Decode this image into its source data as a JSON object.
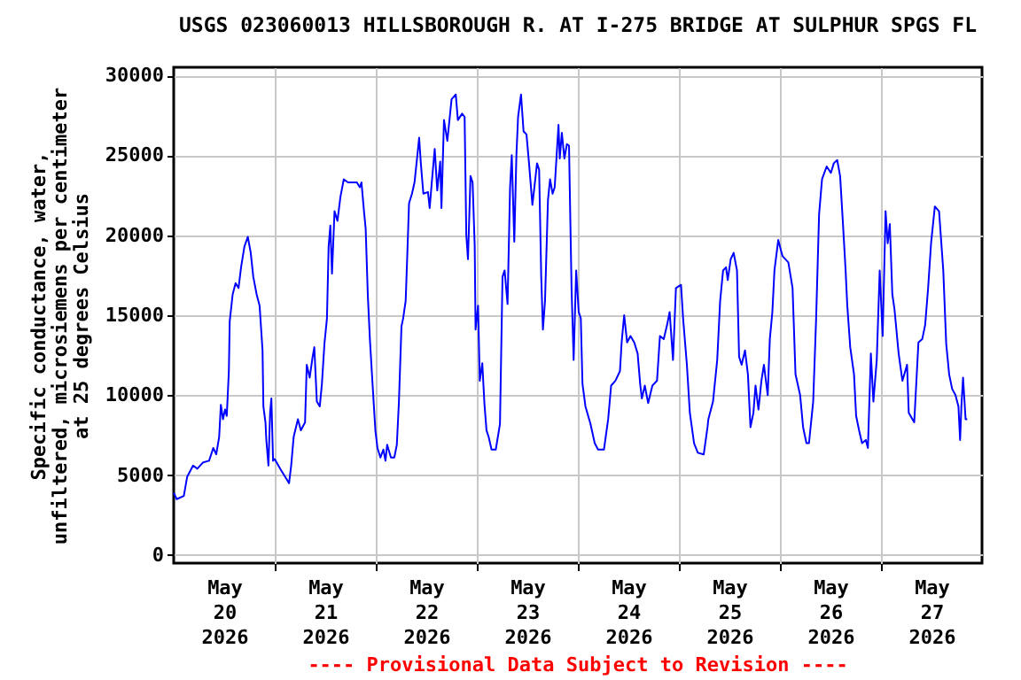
{
  "chart_data": {
    "type": "line",
    "title": "USGS 023060013 HILLSBOROUGH R. AT I-275 BRIDGE AT SULPHUR SPGS FL",
    "ylabel": "Specific conductance, water,\nunfiltered, microsiemens per centimeter\nat 25 degrees Celsius",
    "annotations": [
      "---- Provisional Data Subject to Revision ----"
    ],
    "xlim": [
      "2026-05-20T00:00",
      "2026-05-28T00:00"
    ],
    "xticks": [
      {
        "value": "2026-05-20T12:00",
        "label": "May\n20\n2026"
      },
      {
        "value": "2026-05-21T00:00",
        "label": null
      },
      {
        "value": "2026-05-21T12:00",
        "label": "May\n21\n2026"
      },
      {
        "value": "2026-05-22T00:00",
        "label": null
      },
      {
        "value": "2026-05-22T12:00",
        "label": "May\n22\n2026"
      },
      {
        "value": "2026-05-23T00:00",
        "label": null
      },
      {
        "value": "2026-05-23T12:00",
        "label": "May\n23\n2026"
      },
      {
        "value": "2026-05-24T00:00",
        "label": null
      },
      {
        "value": "2026-05-24T12:00",
        "label": "May\n24\n2026"
      },
      {
        "value": "2026-05-25T00:00",
        "label": null
      },
      {
        "value": "2026-05-25T12:00",
        "label": "May\n25\n2026"
      },
      {
        "value": "2026-05-26T00:00",
        "label": null
      },
      {
        "value": "2026-05-26T12:00",
        "label": "May\n26\n2026"
      },
      {
        "value": "2026-05-27T00:00",
        "label": null
      },
      {
        "value": "2026-05-27T12:00",
        "label": "May\n27\n2026"
      }
    ],
    "ylim": [
      -500,
      30500
    ],
    "yticks": [
      0,
      5000,
      10000,
      15000,
      20000,
      25000,
      30000
    ],
    "grid": true,
    "x": [
      "2026-05-20T00:00",
      "2026-05-20T00:42",
      "2026-05-20T02:24",
      "2026-05-20T03:12",
      "2026-05-20T04:36",
      "2026-05-20T05:36",
      "2026-05-20T07:00",
      "2026-05-20T08:24",
      "2026-05-20T09:24",
      "2026-05-20T10:06",
      "2026-05-20T10:48",
      "2026-05-20T11:12",
      "2026-05-20T11:42",
      "2026-05-20T12:12",
      "2026-05-20T12:36",
      "2026-05-20T13:06",
      "2026-05-20T13:18",
      "2026-05-20T14:00",
      "2026-05-20T14:42",
      "2026-05-20T15:24",
      "2026-05-20T16:00",
      "2026-05-20T16:48",
      "2026-05-20T17:36",
      "2026-05-20T18:18",
      "2026-05-20T18:54",
      "2026-05-20T19:42",
      "2026-05-20T20:24",
      "2026-05-20T21:06",
      "2026-05-20T21:18",
      "2026-05-20T21:48",
      "2026-05-20T22:00",
      "2026-05-20T22:30",
      "2026-05-20T22:54",
      "2026-05-20T23:12",
      "2026-05-20T23:36",
      "2026-05-21T00:00",
      "2026-05-21T01:18",
      "2026-05-21T02:42",
      "2026-05-21T03:24",
      "2026-05-21T03:54",
      "2026-05-21T04:30",
      "2026-05-21T05:30",
      "2026-05-21T06:12",
      "2026-05-21T07:12",
      "2026-05-21T07:36",
      "2026-05-21T08:18",
      "2026-05-21T09:00",
      "2026-05-21T09:24",
      "2026-05-21T10:00",
      "2026-05-21T10:42",
      "2026-05-21T11:12",
      "2026-05-21T11:48",
      "2026-05-21T12:24",
      "2026-05-21T12:48",
      "2026-05-21T13:12",
      "2026-05-21T13:36",
      "2026-05-21T14:12",
      "2026-05-21T14:54",
      "2026-05-21T15:36",
      "2026-05-21T16:24",
      "2026-05-21T17:24",
      "2026-05-21T19:30",
      "2026-05-21T20:12",
      "2026-05-21T20:36",
      "2026-05-21T21:12",
      "2026-05-21T21:36",
      "2026-05-21T22:06",
      "2026-05-21T22:36",
      "2026-05-21T23:18",
      "2026-05-21T23:54",
      "2026-05-22T00:24",
      "2026-05-22T01:06",
      "2026-05-22T01:48",
      "2026-05-22T02:18",
      "2026-05-22T02:42",
      "2026-05-22T03:36",
      "2026-05-22T04:24",
      "2026-05-22T05:00",
      "2026-05-22T05:30",
      "2026-05-22T06:06",
      "2026-05-22T06:30",
      "2026-05-22T07:06",
      "2026-05-22T07:30",
      "2026-05-22T07:54",
      "2026-05-22T08:36",
      "2026-05-22T09:12",
      "2026-05-22T09:48",
      "2026-05-22T10:18",
      "2026-05-22T10:42",
      "2026-05-22T11:18",
      "2026-05-22T12:24",
      "2026-05-22T12:48",
      "2026-05-22T13:18",
      "2026-05-22T14:00",
      "2026-05-22T14:36",
      "2026-05-22T15:18",
      "2026-05-22T15:36",
      "2026-05-22T16:12",
      "2026-05-22T17:00",
      "2026-05-22T18:00",
      "2026-05-22T19:00",
      "2026-05-22T19:30",
      "2026-05-22T20:30",
      "2026-05-22T21:06",
      "2026-05-22T21:30",
      "2026-05-22T21:54",
      "2026-05-22T22:30",
      "2026-05-22T23:00",
      "2026-05-22T23:30",
      "2026-05-22T23:42",
      "2026-05-23T00:18",
      "2026-05-23T00:42",
      "2026-05-23T01:18",
      "2026-05-23T01:48",
      "2026-05-23T02:18",
      "2026-05-23T02:48",
      "2026-05-23T03:30",
      "2026-05-23T04:30",
      "2026-05-23T05:30",
      "2026-05-23T06:06",
      "2026-05-23T06:36",
      "2026-05-23T07:18",
      "2026-05-23T07:54",
      "2026-05-23T08:18",
      "2026-05-23T08:54",
      "2026-05-23T09:24",
      "2026-05-23T09:48",
      "2026-05-23T10:30",
      "2026-05-23T11:06",
      "2026-05-23T11:48",
      "2026-05-23T12:24",
      "2026-05-23T13:12",
      "2026-05-23T13:48",
      "2026-05-23T14:18",
      "2026-05-23T14:48",
      "2026-05-23T15:18",
      "2026-05-23T15:42",
      "2026-05-23T16:12",
      "2026-05-23T16:54",
      "2026-05-23T17:24",
      "2026-05-23T18:00",
      "2026-05-23T18:30",
      "2026-05-23T19:24",
      "2026-05-23T19:42",
      "2026-05-23T20:12",
      "2026-05-23T20:48",
      "2026-05-23T21:24",
      "2026-05-23T21:54",
      "2026-05-23T22:30",
      "2026-05-23T23:00",
      "2026-05-23T23:36",
      "2026-05-24T00:12",
      "2026-05-24T00:42",
      "2026-05-24T01:06",
      "2026-05-24T01:48",
      "2026-05-24T03:00",
      "2026-05-24T04:00",
      "2026-05-24T04:48",
      "2026-05-24T06:12",
      "2026-05-24T07:12",
      "2026-05-24T07:54",
      "2026-05-24T08:54",
      "2026-05-24T10:00",
      "2026-05-24T10:24",
      "2026-05-24T11:00",
      "2026-05-24T11:42",
      "2026-05-24T12:30",
      "2026-05-24T13:24",
      "2026-05-24T14:12",
      "2026-05-24T14:48",
      "2026-05-24T15:12",
      "2026-05-24T15:54",
      "2026-05-24T16:42",
      "2026-05-24T17:42",
      "2026-05-24T18:48",
      "2026-05-24T19:30",
      "2026-05-24T20:24",
      "2026-05-24T21:12",
      "2026-05-24T21:48",
      "2026-05-24T22:36",
      "2026-05-24T23:18",
      "2026-05-25T00:30",
      "2026-05-25T01:00",
      "2026-05-25T01:54",
      "2026-05-25T02:36",
      "2026-05-25T03:36",
      "2026-05-25T04:30",
      "2026-05-25T05:54",
      "2026-05-25T06:48",
      "2026-05-25T07:00",
      "2026-05-25T08:06",
      "2026-05-25T09:06",
      "2026-05-25T09:48",
      "2026-05-25T10:30",
      "2026-05-25T11:12",
      "2026-05-25T11:36",
      "2026-05-25T12:18",
      "2026-05-25T13:00",
      "2026-05-25T13:48",
      "2026-05-25T14:18",
      "2026-05-25T14:54",
      "2026-05-25T15:42",
      "2026-05-25T16:24",
      "2026-05-25T17:00",
      "2026-05-25T17:42",
      "2026-05-25T18:12",
      "2026-05-25T18:54",
      "2026-05-25T19:36",
      "2026-05-25T20:12",
      "2026-05-25T21:06",
      "2026-05-25T21:36",
      "2026-05-25T22:12",
      "2026-05-25T22:42",
      "2026-05-25T23:36",
      "2026-05-26T00:36",
      "2026-05-26T02:00",
      "2026-05-26T03:00",
      "2026-05-26T03:42",
      "2026-05-26T04:48",
      "2026-05-26T05:30",
      "2026-05-26T06:18",
      "2026-05-26T06:54",
      "2026-05-26T07:54",
      "2026-05-26T08:36",
      "2026-05-26T09:18",
      "2026-05-26T10:00",
      "2026-05-26T11:06",
      "2026-05-26T12:06",
      "2026-05-26T12:48",
      "2026-05-26T13:36",
      "2026-05-26T14:18",
      "2026-05-26T15:00",
      "2026-05-26T15:36",
      "2026-05-26T16:00",
      "2026-05-26T16:42",
      "2026-05-26T17:36",
      "2026-05-26T18:06",
      "2026-05-26T18:48",
      "2026-05-26T19:30",
      "2026-05-26T20:24",
      "2026-05-26T20:54",
      "2026-05-26T21:36",
      "2026-05-26T22:12",
      "2026-05-26T23:00",
      "2026-05-26T23:42",
      "2026-05-27T00:24",
      "2026-05-27T01:06",
      "2026-05-27T01:36",
      "2026-05-27T02:06",
      "2026-05-27T02:42",
      "2026-05-27T03:12",
      "2026-05-27T04:12",
      "2026-05-27T05:06",
      "2026-05-27T06:12",
      "2026-05-27T06:36",
      "2026-05-27T07:54",
      "2026-05-27T08:54",
      "2026-05-27T09:48",
      "2026-05-27T10:30",
      "2026-05-27T11:12",
      "2026-05-27T11:54",
      "2026-05-27T12:48",
      "2026-05-27T13:48",
      "2026-05-27T14:48",
      "2026-05-27T15:30",
      "2026-05-27T16:12",
      "2026-05-27T16:54",
      "2026-05-27T17:42",
      "2026-05-27T18:24",
      "2026-05-27T18:48",
      "2026-05-27T19:06",
      "2026-05-27T19:30",
      "2026-05-27T20:06",
      "2026-05-27T20:30"
    ],
    "series": [
      {
        "color": "#0000ff",
        "values": [
          3900,
          3500,
          3700,
          4900,
          5600,
          5400,
          5800,
          5900,
          6700,
          6300,
          7400,
          9400,
          8500,
          9100,
          8700,
          11500,
          14600,
          16300,
          17000,
          16700,
          18000,
          19300,
          19900,
          18900,
          17400,
          16300,
          15600,
          12800,
          9300,
          8300,
          7200,
          5600,
          8900,
          9800,
          5900,
          6000,
          5400,
          4800,
          4500,
          5600,
          7400,
          8500,
          7800,
          8300,
          11900,
          11100,
          12400,
          13000,
          9600,
          9300,
          10700,
          13200,
          14800,
          19300,
          20600,
          17600,
          21500,
          20900,
          22400,
          23500,
          23300,
          23300,
          23000,
          23300,
          21500,
          20400,
          16300,
          13500,
          10400,
          7800,
          6700,
          6100,
          6600,
          5900,
          6900,
          6100,
          6100,
          6900,
          9600,
          14300,
          14800,
          15900,
          18900,
          22000,
          22600,
          23300,
          24800,
          26100,
          24500,
          22600,
          22700,
          21700,
          23300,
          25400,
          22800,
          24600,
          21700,
          27200,
          25900,
          28500,
          28800,
          27200,
          27600,
          27400,
          20000,
          18500,
          23700,
          23300,
          19300,
          14100,
          15600,
          10900,
          12000,
          9500,
          7800,
          7400,
          6600,
          6600,
          8200,
          17400,
          17800,
          15700,
          23000,
          25000,
          19600,
          25000,
          27400,
          28800,
          26500,
          26300,
          24500,
          21900,
          23300,
          24500,
          24100,
          17400,
          14100,
          15900,
          22200,
          23500,
          22600,
          23000,
          26900,
          24800,
          26400,
          24800,
          25700,
          25600,
          16700,
          12200,
          17800,
          15200,
          14800,
          10700,
          9300,
          8200,
          7000,
          6600,
          6600,
          8500,
          10600,
          10900,
          11500,
          13300,
          15000,
          13300,
          13700,
          13300,
          12600,
          10700,
          9800,
          10600,
          9500,
          10600,
          10900,
          13700,
          13500,
          14400,
          15200,
          12200,
          16700,
          16900,
          14800,
          11900,
          8900,
          7000,
          6400,
          6300,
          8000,
          8500,
          9600,
          12200,
          15900,
          17800,
          18000,
          17200,
          18500,
          18900,
          17800,
          12400,
          11900,
          12800,
          11300,
          8000,
          8900,
          10600,
          9100,
          10900,
          11900,
          10000,
          13500,
          15200,
          17800,
          19700,
          18700,
          18300,
          16700,
          11300,
          10000,
          8000,
          7000,
          7000,
          9600,
          14800,
          21300,
          23500,
          24300,
          23900,
          24500,
          24700,
          23700,
          20600,
          17800,
          15600,
          13000,
          11300,
          8700,
          7800,
          7000,
          7200,
          6700,
          12600,
          9600,
          12200,
          17800,
          13700,
          21500,
          19500,
          20700,
          16300,
          15400,
          12600,
          10900,
          11900,
          8900,
          8300,
          13300,
          13500,
          14400,
          16700,
          19500,
          21800,
          21500,
          17800,
          13200,
          11300,
          10400,
          10000,
          9300,
          7200,
          9300,
          11100,
          8500,
          8500
        ]
      }
    ]
  }
}
